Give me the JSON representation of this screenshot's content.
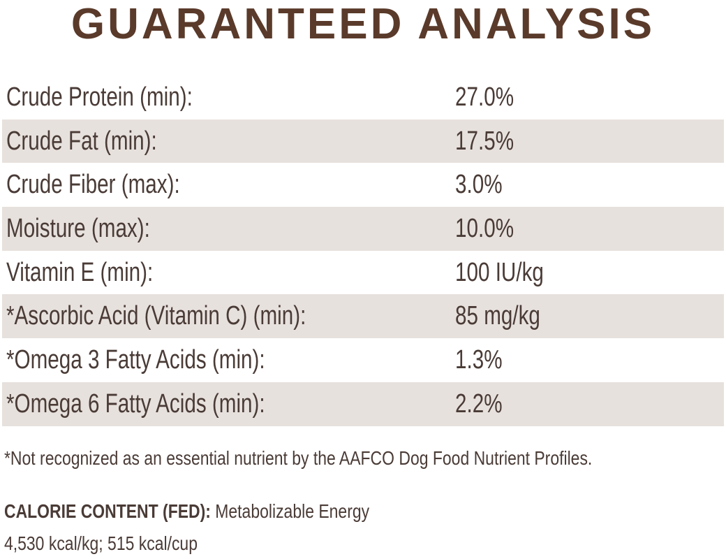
{
  "header": {
    "title": "GUARANTEED ANALYSIS"
  },
  "table": {
    "rows": [
      [
        "Crude Protein (min):",
        "27.0%"
      ],
      [
        "Crude Fat (min):",
        "17.5%"
      ],
      [
        "Crude Fiber (max):",
        "3.0%"
      ],
      [
        "Moisture (max):",
        "10.0%"
      ],
      [
        "Vitamin E (min):",
        "100 IU/kg"
      ],
      [
        "*Ascorbic Acid (Vitamin C) (min):",
        "85 mg/kg"
      ],
      [
        "*Omega 3 Fatty Acids (min):",
        "1.3%"
      ],
      [
        "*Omega 6 Fatty Acids (min):",
        "2.2%"
      ]
    ]
  },
  "footnote": "*Not recognized as an essential nutrient by the AAFCO Dog Food Nutrient Profiles.",
  "calorie": {
    "label": "CALORIE CONTENT (FED):",
    "text": "Metabolizable Energy",
    "values": "4,530 kcal/kg; 515 kcal/cup"
  }
}
